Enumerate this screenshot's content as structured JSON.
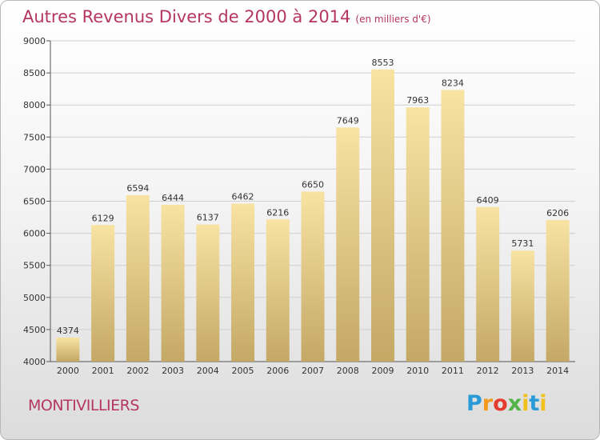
{
  "header": {
    "title": "Autres Revenus Divers de 2000 à 2014",
    "unit": "(en milliers d'€)"
  },
  "footer": {
    "city": "MONTIVILLIERS",
    "logo": "Proxiti"
  },
  "colors": {
    "title": "#b5365f",
    "bar_light": "#f8e3a3",
    "bar_dark": "#c4a865",
    "grid": "#cfcfcf"
  },
  "chart_data": {
    "type": "bar",
    "title": "Autres Revenus Divers de 2000 à 2014",
    "subtitle": "(en milliers d'€)",
    "categories": [
      "2000",
      "2001",
      "2002",
      "2003",
      "2004",
      "2005",
      "2006",
      "2007",
      "2008",
      "2009",
      "2010",
      "2011",
      "2012",
      "2013",
      "2014"
    ],
    "values": [
      4374,
      6129,
      6594,
      6444,
      6137,
      6462,
      6216,
      6650,
      7649,
      8553,
      7963,
      8234,
      6409,
      5731,
      6206
    ],
    "ylim": [
      4000,
      9000
    ],
    "yticks": [
      4000,
      4500,
      5000,
      5500,
      6000,
      6500,
      7000,
      7500,
      8000,
      8500,
      9000
    ],
    "grid": true,
    "data_labels": true
  }
}
